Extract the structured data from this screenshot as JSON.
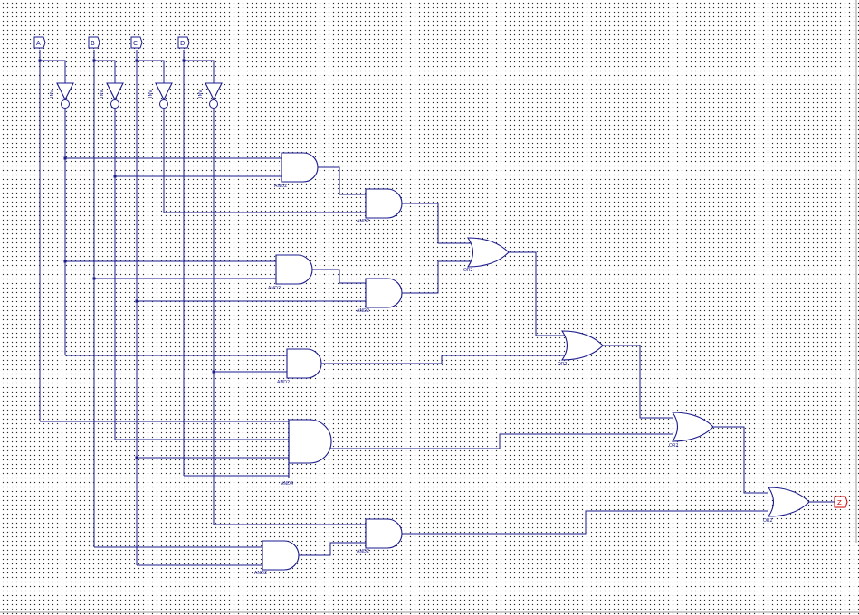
{
  "inputs": [
    "A",
    "B",
    "C",
    "D"
  ],
  "output": "Z",
  "inverter_label": "INV",
  "gate_labels": {
    "and_1": "AND2",
    "and_2": "AND2",
    "or_1": "OR2",
    "and_3": "AND2",
    "and_4": "AND2",
    "or_2": "OR2",
    "and_5": "AND2",
    "or_3": "OR2",
    "and_6": "AND4",
    "or_4": "OR2",
    "and_7": "AND2",
    "and_8": "AND2"
  },
  "colors": {
    "wire": "#1a1a8c",
    "output_port": "#cc0000",
    "grid_dot": "#2a2a2a",
    "background": "#ffffff"
  }
}
